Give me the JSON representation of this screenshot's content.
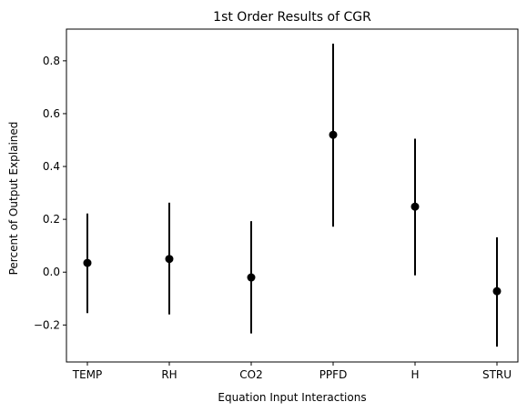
{
  "chart_data": {
    "type": "scatter",
    "title": "1st Order Results of CGR",
    "xlabel": "Equation Input Interactions",
    "ylabel": "Percent of Output Explained",
    "categories": [
      "TEMP",
      "RH",
      "CO2",
      "PPFD",
      "H",
      "STRU"
    ],
    "series": [
      {
        "values": [
          0.035,
          0.05,
          -0.02,
          0.52,
          0.248,
          -0.072
        ],
        "lower": [
          -0.155,
          -0.16,
          -0.232,
          0.172,
          -0.012,
          -0.282
        ],
        "upper": [
          0.222,
          0.263,
          0.193,
          0.865,
          0.505,
          0.132
        ]
      }
    ],
    "ylim": [
      -0.34,
      0.92
    ],
    "yticks": [
      -0.2,
      0.0,
      0.2,
      0.4,
      0.6,
      0.8
    ],
    "ytick_labels": [
      "−0.2",
      "0.0",
      "0.2",
      "0.4",
      "0.6",
      "0.8"
    ],
    "grid": false,
    "marker_color": "#000000",
    "errorbar_color": "#000000"
  }
}
